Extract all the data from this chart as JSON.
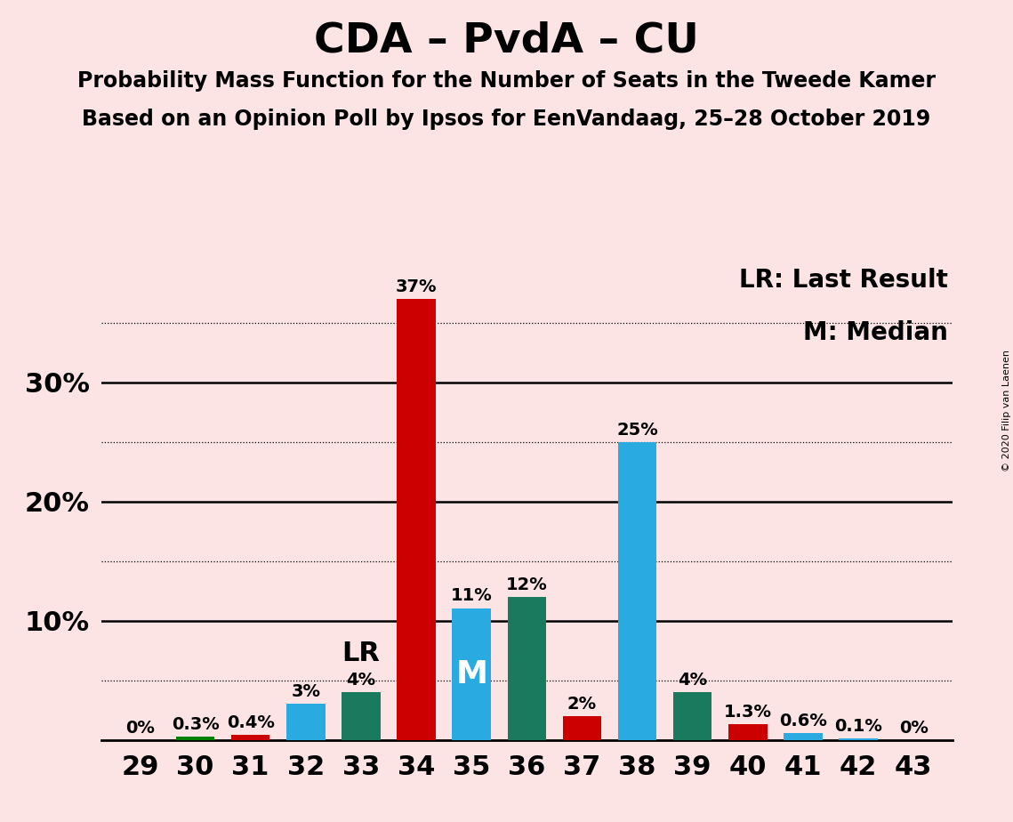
{
  "title": "CDA – PvdA – CU",
  "subtitle1": "Probability Mass Function for the Number of Seats in the Tweede Kamer",
  "subtitle2": "Based on an Opinion Poll by Ipsos for EenVandaag, 25–28 October 2019",
  "copyright": "© 2020 Filip van Laenen",
  "legend_lr": "LR: Last Result",
  "legend_m": "M: Median",
  "seats": [
    29,
    30,
    31,
    32,
    33,
    34,
    35,
    36,
    37,
    38,
    39,
    40,
    41,
    42,
    43
  ],
  "values": [
    0.0,
    0.3,
    0.4,
    3.0,
    4.0,
    37.0,
    11.0,
    12.0,
    2.0,
    25.0,
    4.0,
    1.3,
    0.6,
    0.1,
    0.0
  ],
  "colors": [
    "#008000",
    "#008000",
    "#cc0000",
    "#29abe2",
    "#1a7a5e",
    "#cc0000",
    "#29abe2",
    "#1a7a5e",
    "#cc0000",
    "#29abe2",
    "#1a7a5e",
    "#cc0000",
    "#29abe2",
    "#29abe2",
    "#29abe2"
  ],
  "labels": [
    "0%",
    "0.3%",
    "0.4%",
    "3%",
    "4%",
    "37%",
    "11%",
    "12%",
    "2%",
    "25%",
    "4%",
    "1.3%",
    "0.6%",
    "0.1%",
    "0%"
  ],
  "lr_seat": 33,
  "median_seat": 35,
  "background_color": "#fce4e4",
  "ylim_max": 40,
  "bar_width": 0.7,
  "title_fontsize": 34,
  "subtitle_fontsize": 17,
  "label_fontsize": 14,
  "tick_fontsize": 22,
  "lr_m_fontsize": 20,
  "ytick_major": [
    10,
    20,
    30
  ],
  "ytick_dotted": [
    5,
    15,
    25,
    35
  ]
}
